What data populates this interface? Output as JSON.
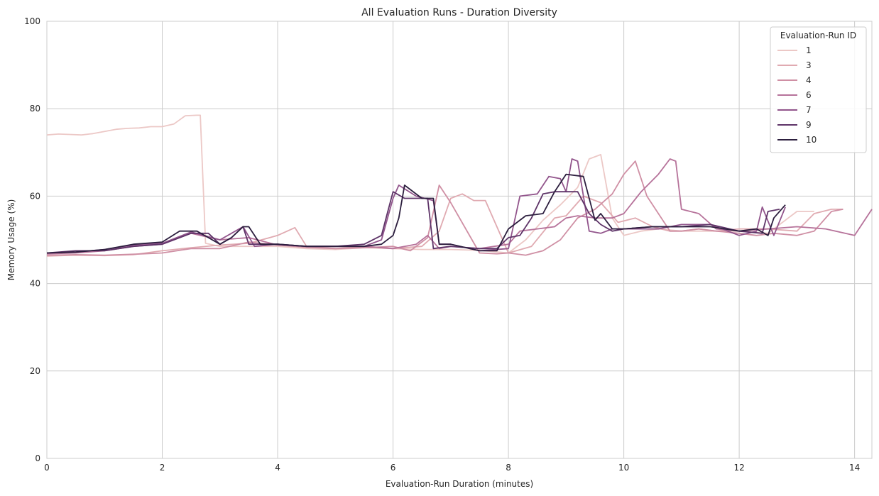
{
  "chart_data": {
    "type": "line",
    "title": "All Evaluation Runs - Duration Diversity",
    "xlabel": "Evaluation-Run Duration (minutes)",
    "ylabel": "Memory Usage (%)",
    "xlim": [
      0,
      14.3
    ],
    "ylim": [
      0,
      100
    ],
    "xticks": [
      0,
      2,
      4,
      6,
      8,
      10,
      12,
      14
    ],
    "yticks": [
      0,
      20,
      40,
      60,
      80,
      100
    ],
    "grid": true,
    "legend": {
      "title": "Evaluation-Run ID",
      "placement": "top-right"
    },
    "series": [
      {
        "name": "1",
        "color": "#ecc8c6",
        "x": [
          0,
          0.2,
          0.4,
          0.6,
          0.8,
          1.0,
          1.2,
          1.4,
          1.6,
          1.8,
          2.0,
          2.2,
          2.4,
          2.6,
          2.66,
          2.75,
          3.0,
          3.5,
          4.0,
          4.5,
          5.0,
          5.5,
          6.0,
          6.5,
          7.0,
          7.5,
          8.0,
          8.3,
          8.6,
          8.9,
          9.2,
          9.4,
          9.6,
          9.8,
          10.0,
          10.3,
          10.6,
          11.0,
          11.5,
          12.0,
          12.5,
          13.0,
          13.3
        ],
        "y": [
          74.0,
          74.2,
          74.1,
          74.0,
          74.3,
          74.8,
          75.3,
          75.5,
          75.6,
          75.9,
          75.9,
          76.5,
          78.4,
          78.5,
          78.5,
          49.2,
          48.5,
          48.5,
          48.5,
          48.0,
          47.8,
          48.2,
          48.0,
          47.8,
          47.8,
          47.6,
          47.0,
          50.0,
          54.5,
          58.0,
          62.0,
          68.5,
          69.5,
          55.0,
          51.0,
          52.0,
          52.5,
          52.0,
          52.0,
          52.0,
          51.5,
          56.5,
          56.5
        ]
      },
      {
        "name": "3",
        "color": "#e0aab1",
        "x": [
          0,
          0.5,
          1.0,
          1.5,
          2.0,
          2.5,
          3.0,
          3.5,
          4.0,
          4.3,
          4.5,
          5.0,
          5.5,
          6.0,
          6.5,
          6.8,
          7.0,
          7.2,
          7.4,
          7.6,
          8.0,
          8.4,
          8.8,
          9.0,
          9.3,
          9.6,
          9.9,
          10.2,
          10.5,
          10.8,
          11.0,
          11.3,
          11.6,
          12.0,
          12.5,
          13.0,
          13.3,
          13.6,
          13.8
        ],
        "y": [
          46.3,
          46.5,
          46.4,
          46.6,
          47.5,
          48.2,
          48.8,
          49.2,
          51.0,
          52.8,
          48.5,
          48.0,
          48.5,
          48.0,
          48.5,
          52.0,
          59.5,
          60.5,
          59.0,
          59.0,
          47.0,
          48.5,
          55.0,
          55.5,
          60.0,
          58.5,
          54.0,
          55.0,
          53.0,
          52.0,
          52.0,
          52.5,
          52.0,
          52.5,
          52.5,
          52.0,
          56.0,
          57.0,
          57.0
        ]
      },
      {
        "name": "4",
        "color": "#cf8fa4",
        "x": [
          0,
          0.5,
          1.0,
          1.5,
          2.0,
          2.5,
          3.0,
          3.5,
          4.0,
          4.5,
          5.0,
          5.5,
          6.0,
          6.3,
          6.6,
          6.8,
          7.0,
          7.5,
          7.8,
          8.0,
          8.3,
          8.6,
          8.9,
          9.2,
          9.5,
          9.8,
          10.0,
          10.2,
          10.4,
          10.6,
          10.8,
          11.0,
          11.3,
          11.6,
          12.0,
          12.3,
          12.6,
          13.0,
          13.3,
          13.6,
          13.8
        ],
        "y": [
          46.5,
          46.6,
          46.5,
          46.7,
          47.0,
          48.0,
          48.0,
          49.5,
          48.8,
          48.3,
          48.0,
          48.2,
          48.5,
          47.5,
          50.5,
          62.5,
          58.5,
          47.0,
          46.8,
          47.0,
          46.5,
          47.5,
          50.0,
          55.0,
          57.0,
          60.5,
          65.0,
          68.0,
          60.0,
          56.0,
          52.0,
          52.0,
          52.5,
          52.0,
          51.5,
          51.0,
          51.5,
          51.0,
          52.0,
          56.5,
          57.0
        ]
      },
      {
        "name": "6",
        "color": "#b6729a",
        "x": [
          0,
          0.5,
          1.0,
          1.5,
          2.0,
          2.5,
          3.0,
          3.5,
          4.0,
          4.5,
          5.0,
          5.5,
          6.0,
          6.2,
          6.4,
          6.6,
          6.8,
          7.0,
          7.5,
          8.0,
          8.2,
          8.5,
          8.8,
          9.0,
          9.2,
          9.5,
          9.8,
          10.0,
          10.3,
          10.6,
          10.8,
          10.9,
          11.0,
          11.3,
          11.6,
          12.0,
          12.5,
          13.0,
          13.5,
          14.0,
          14.3
        ],
        "y": [
          46.8,
          47.0,
          47.5,
          48.5,
          49.0,
          51.5,
          50.0,
          50.5,
          48.8,
          48.5,
          48.5,
          48.5,
          48.0,
          48.5,
          49.0,
          51.0,
          48.0,
          48.5,
          48.0,
          49.0,
          52.0,
          52.5,
          53.0,
          55.0,
          55.5,
          55.0,
          55.0,
          56.0,
          61.0,
          65.0,
          68.5,
          68.0,
          57.0,
          56.0,
          52.5,
          52.0,
          52.5,
          53.0,
          52.5,
          51.0,
          57.0
        ]
      },
      {
        "name": "7",
        "color": "#92558c",
        "x": [
          0,
          0.5,
          1.0,
          1.5,
          2.0,
          2.5,
          3.0,
          3.2,
          3.4,
          3.6,
          4.0,
          4.5,
          5.0,
          5.5,
          5.8,
          6.0,
          6.1,
          6.4,
          6.7,
          6.8,
          7.0,
          7.5,
          8.0,
          8.2,
          8.5,
          8.7,
          8.9,
          9.0,
          9.1,
          9.2,
          9.4,
          9.6,
          9.8,
          10.0,
          10.3,
          10.6,
          11.0,
          11.5,
          12.0,
          12.3,
          12.4,
          12.6,
          12.8
        ],
        "y": [
          47.0,
          47.2,
          47.8,
          48.8,
          49.2,
          51.8,
          50.0,
          51.5,
          53.0,
          48.5,
          49.0,
          48.5,
          48.5,
          48.5,
          50.0,
          59.5,
          62.5,
          60.0,
          59.0,
          49.0,
          49.0,
          47.5,
          48.0,
          60.0,
          60.5,
          64.5,
          64.0,
          61.0,
          68.5,
          68.0,
          52.0,
          51.5,
          52.5,
          52.5,
          52.5,
          52.5,
          53.5,
          53.5,
          51.0,
          52.0,
          57.5,
          51.0,
          57.5
        ]
      },
      {
        "name": "9",
        "color": "#5e3468",
        "x": [
          0,
          0.5,
          1.0,
          1.5,
          2.0,
          2.5,
          2.8,
          3.0,
          3.2,
          3.4,
          3.5,
          4.0,
          4.5,
          5.0,
          5.5,
          5.8,
          5.9,
          6.0,
          6.2,
          6.5,
          6.6,
          6.7,
          7.0,
          7.5,
          7.8,
          8.0,
          8.2,
          8.4,
          8.6,
          8.8,
          9.0,
          9.2,
          9.4,
          9.6,
          9.8,
          10.0,
          10.5,
          11.0,
          11.5,
          12.0,
          12.4,
          12.5,
          12.7
        ],
        "y": [
          47.0,
          47.5,
          47.5,
          48.5,
          49.0,
          51.5,
          51.5,
          49.0,
          50.5,
          53.0,
          49.0,
          49.0,
          48.5,
          48.5,
          49.0,
          51.0,
          56.0,
          61.0,
          59.5,
          59.5,
          59.5,
          48.0,
          48.5,
          48.0,
          48.0,
          50.5,
          51.0,
          55.0,
          60.5,
          61.0,
          61.0,
          61.0,
          56.0,
          53.5,
          52.0,
          52.5,
          53.0,
          53.0,
          53.5,
          52.0,
          51.5,
          56.5,
          57.0
        ]
      },
      {
        "name": "10",
        "color": "#2c1e3e",
        "x": [
          0,
          0.5,
          1.0,
          1.5,
          2.0,
          2.3,
          2.5,
          2.6,
          2.8,
          3.0,
          3.2,
          3.4,
          3.5,
          3.7,
          4.0,
          4.5,
          5.0,
          5.5,
          5.8,
          6.0,
          6.1,
          6.2,
          6.5,
          6.7,
          6.8,
          7.0,
          7.5,
          7.8,
          8.0,
          8.3,
          8.6,
          8.8,
          9.0,
          9.3,
          9.5,
          9.6,
          9.8,
          10.0,
          10.5,
          11.0,
          11.5,
          12.0,
          12.3,
          12.5,
          12.6,
          12.8
        ],
        "y": [
          47.0,
          47.2,
          47.8,
          49.0,
          49.5,
          52.0,
          52.0,
          52.0,
          50.5,
          49.0,
          50.5,
          53.0,
          53.0,
          49.0,
          49.0,
          48.5,
          48.5,
          48.5,
          49.0,
          51.0,
          55.0,
          62.5,
          59.5,
          59.5,
          49.0,
          49.0,
          47.5,
          47.5,
          52.5,
          55.5,
          56.0,
          61.0,
          65.0,
          64.5,
          54.5,
          56.0,
          52.5,
          52.5,
          53.0,
          53.0,
          53.0,
          52.0,
          52.5,
          51.0,
          55.0,
          58.0
        ]
      }
    ]
  }
}
